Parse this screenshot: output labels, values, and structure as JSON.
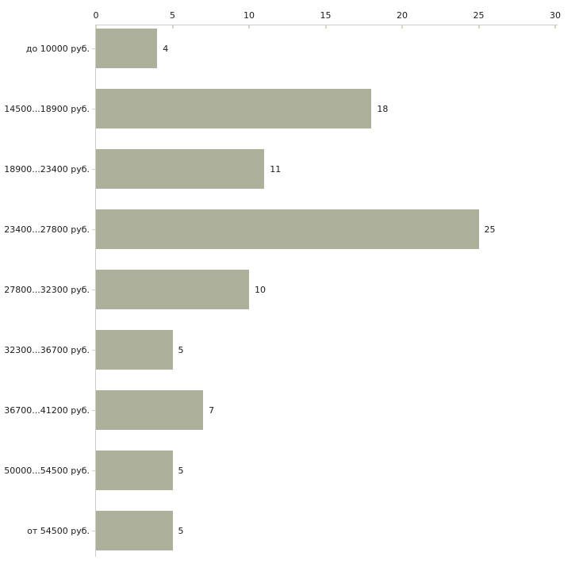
{
  "chart_data": {
    "type": "bar",
    "orientation": "horizontal",
    "title": "",
    "xlabel": "",
    "ylabel": "",
    "categories": [
      "до 10000 руб.",
      "14500...18900 руб.",
      "18900...23400 руб.",
      "23400...27800 руб.",
      "27800...32300 руб.",
      "32300...36700 руб.",
      "36700...41200 руб.",
      "50000...54500 руб.",
      "от 54500 руб."
    ],
    "values": [
      4,
      18,
      11,
      25,
      10,
      5,
      7,
      5,
      5
    ],
    "value_labels": [
      "4",
      "18",
      "11",
      "25",
      "10",
      "5",
      "7",
      "5",
      "5"
    ],
    "xlim": [
      0,
      30
    ],
    "x_ticks": [
      0,
      5,
      10,
      15,
      20,
      25,
      30
    ],
    "grid": false,
    "legend": null,
    "colors": {
      "bar_fill": "#adb19b",
      "axis_line": "#cccccc",
      "tick_mark": "#d5dabf",
      "text": "#1a1a1a",
      "background": "#ffffff"
    }
  }
}
